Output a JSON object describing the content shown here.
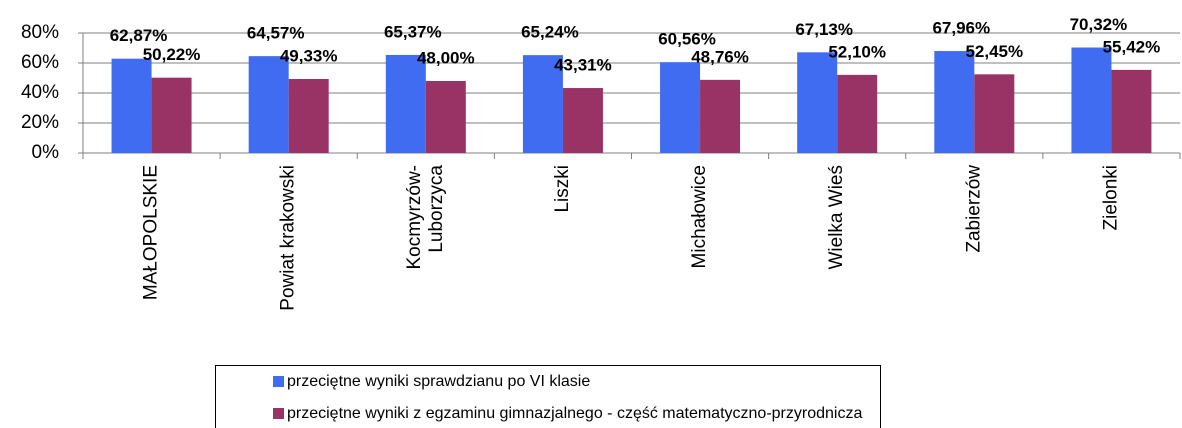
{
  "chart_data": {
    "type": "bar",
    "categories": [
      "MAŁOPOLSKIE",
      "Powiat krakowski",
      "Kocmyrzów-Luborzyca",
      "Liszki",
      "Michałowice",
      "Wielka Wieś",
      "Zabierzów",
      "Zielonki"
    ],
    "series": [
      {
        "name": "przeciętne wyniki sprawdzianu po VI klasie",
        "color": "#3f6cf0",
        "values": [
          62.87,
          64.57,
          65.37,
          65.24,
          60.56,
          67.13,
          67.96,
          70.32
        ],
        "value_labels": [
          "62,87%",
          "64,57%",
          "65,37%",
          "65,24%",
          "60,56%",
          "67,13%",
          "67,96%",
          "70,32%"
        ]
      },
      {
        "name": "przeciętne wyniki z egzaminu gimnazjalnego - część matematyczno-przyrodnicza",
        "color": "#993366",
        "values": [
          50.22,
          49.33,
          48.0,
          43.31,
          48.76,
          52.1,
          52.45,
          55.42
        ],
        "value_labels": [
          "50,22%",
          "49,33%",
          "48,00%",
          "43,31%",
          "48,76%",
          "52,10%",
          "52,45%",
          "55,42%"
        ]
      }
    ],
    "ylim": [
      0,
      80
    ],
    "yticks": [
      {
        "value": 0,
        "label": "0%"
      },
      {
        "value": 20,
        "label": "20%"
      },
      {
        "value": 40,
        "label": "40%"
      },
      {
        "value": 60,
        "label": "60%"
      },
      {
        "value": 80,
        "label": "80%"
      }
    ],
    "grid": true
  }
}
